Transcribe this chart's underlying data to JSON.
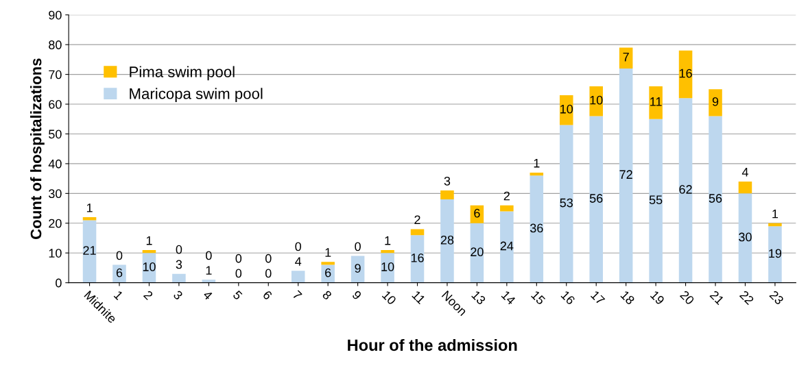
{
  "chart_data": {
    "type": "bar",
    "stacked": true,
    "xlabel": "Hour of the admission",
    "ylabel": "Count of hospitalizations",
    "categories": [
      "Midnite",
      "1",
      "2",
      "3",
      "4",
      "5",
      "6",
      "7",
      "8",
      "9",
      "10",
      "11",
      "Noon",
      "13",
      "14",
      "15",
      "16",
      "17",
      "18",
      "19",
      "20",
      "21",
      "22",
      "23"
    ],
    "series": [
      {
        "name": "Maricopa swim pool",
        "color": "#bdd7ee",
        "values": [
          21,
          6,
          10,
          3,
          1,
          0,
          0,
          4,
          6,
          9,
          10,
          16,
          28,
          20,
          24,
          36,
          53,
          56,
          72,
          55,
          62,
          56,
          30,
          19
        ]
      },
      {
        "name": "Pima swim pool",
        "color": "#ffc000",
        "values": [
          1,
          0,
          1,
          0,
          0,
          0,
          0,
          0,
          1,
          0,
          1,
          2,
          3,
          6,
          2,
          1,
          10,
          10,
          7,
          11,
          16,
          9,
          4,
          1
        ]
      }
    ],
    "ylim": [
      0,
      90
    ],
    "yticks": [
      0,
      10,
      20,
      30,
      40,
      50,
      60,
      70,
      80,
      90
    ],
    "grid": "y",
    "legend": "top left",
    "data_labels": true
  }
}
